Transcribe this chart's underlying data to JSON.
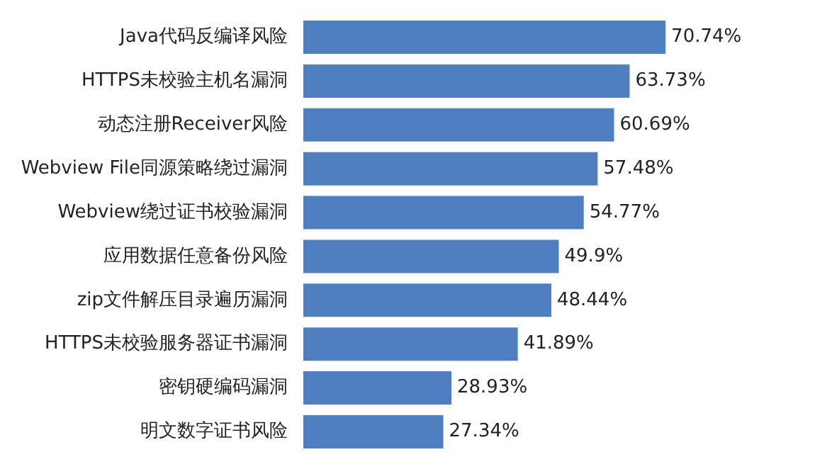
{
  "chart_data": {
    "type": "bar",
    "orientation": "horizontal",
    "categories": [
      "Java代码反编译风险",
      "HTTPS未校验主机名漏洞",
      "动态注册Receiver风险",
      "Webview File同源策略绕过漏洞",
      "Webview绕过证书校验漏洞",
      "应用数据任意备份风险",
      "zip文件解压目录遍历漏洞",
      "HTTPS未校验服务器证书漏洞",
      "密钥硬编码漏洞",
      "明文数字证书风险"
    ],
    "values": [
      70.74,
      63.73,
      60.69,
      57.48,
      54.77,
      49.9,
      48.44,
      41.89,
      28.93,
      27.34
    ],
    "value_labels": [
      "70.74%",
      "63.73%",
      "60.69%",
      "57.48%",
      "54.77%",
      "49.9%",
      "48.44%",
      "41.89%",
      "28.93%",
      "27.34%"
    ],
    "color": "#4f7fbf",
    "tick_labels": "y",
    "legend": false
  }
}
